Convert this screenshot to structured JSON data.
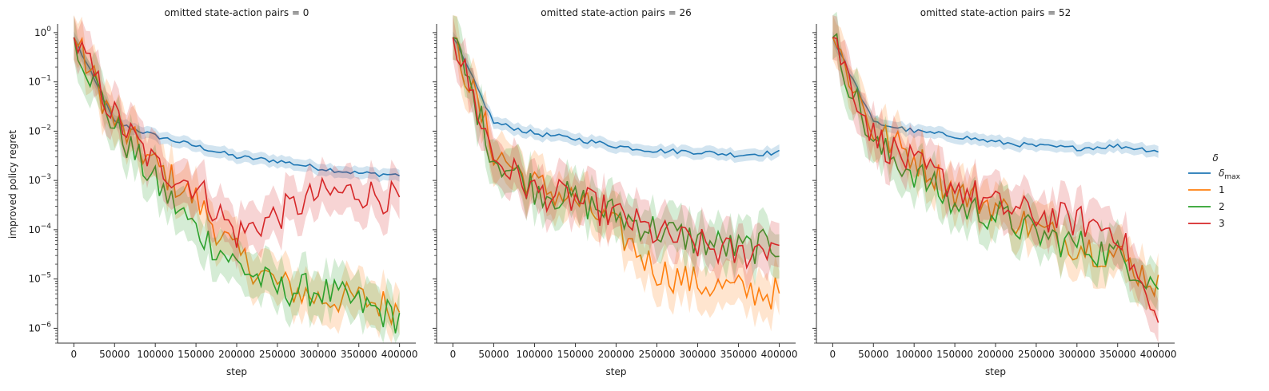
{
  "figure": {
    "ylabel": "improved policy regret",
    "xlabel": "step",
    "legend": {
      "title": "δ",
      "entries": [
        {
          "label": "δmax",
          "color": "#1f77b4"
        },
        {
          "label": "1",
          "color": "#ff7f0e"
        },
        {
          "label": "2",
          "color": "#2ca02c"
        },
        {
          "label": "3",
          "color": "#d62728"
        }
      ]
    },
    "x_ticks": [
      "0",
      "50000",
      "100000",
      "150000",
      "200000",
      "250000",
      "300000",
      "350000",
      "400000"
    ],
    "y_ticks": [
      "10^-6",
      "10^-5",
      "10^-4",
      "10^-3",
      "10^-2",
      "10^-1",
      "10^0"
    ]
  },
  "chart_data": [
    {
      "type": "line",
      "title": "omitted state-action pairs = 0",
      "xlabel": "step",
      "ylabel": "improved policy regret",
      "yscale": "log",
      "xlim": [
        -20000,
        420000
      ],
      "ylim": [
        5e-07,
        1.5
      ],
      "x": [
        0,
        50000,
        100000,
        150000,
        200000,
        250000,
        300000,
        350000,
        400000
      ],
      "series": [
        {
          "name": "δmax",
          "color": "#1f77b4",
          "values": [
            0.8,
            0.015,
            0.008,
            0.005,
            0.003,
            0.0025,
            0.0018,
            0.0014,
            0.0013
          ]
        },
        {
          "name": "1",
          "color": "#ff7f0e",
          "values": [
            0.8,
            0.015,
            0.002,
            0.0004,
            3e-05,
            8e-06,
            4e-06,
            4e-06,
            2.5e-06
          ]
        },
        {
          "name": "2",
          "color": "#2ca02c",
          "values": [
            0.8,
            0.012,
            0.0009,
            0.0001,
            2e-05,
            6e-06,
            6e-06,
            3e-06,
            1.6e-06
          ]
        },
        {
          "name": "3",
          "color": "#d62728",
          "values": [
            0.8,
            0.02,
            0.002,
            0.0008,
            8e-05,
            0.0002,
            0.0005,
            0.0006,
            0.0004
          ]
        }
      ]
    },
    {
      "type": "line",
      "title": "omitted state-action pairs = 26",
      "xlabel": "step",
      "yscale": "log",
      "xlim": [
        -20000,
        420000
      ],
      "ylim": [
        5e-07,
        1.5
      ],
      "x": [
        0,
        50000,
        100000,
        150000,
        200000,
        250000,
        300000,
        350000,
        400000
      ],
      "series": [
        {
          "name": "δmax",
          "color": "#1f77b4",
          "values": [
            0.8,
            0.015,
            0.009,
            0.007,
            0.005,
            0.004,
            0.0038,
            0.0033,
            0.0037
          ]
        },
        {
          "name": "1",
          "color": "#ff7f0e",
          "values": [
            0.8,
            0.004,
            0.0008,
            0.0004,
            0.0001,
            1.5e-05,
            8e-06,
            6e-06,
            5e-06
          ]
        },
        {
          "name": "2",
          "color": "#2ca02c",
          "values": [
            0.8,
            0.003,
            0.0007,
            0.0004,
            0.0002,
            0.0001,
            6e-05,
            4e-05,
            5e-05
          ]
        },
        {
          "name": "3",
          "color": "#d62728",
          "values": [
            0.8,
            0.003,
            0.0006,
            0.0004,
            0.0002,
            8e-05,
            5e-05,
            3e-05,
            6e-05
          ]
        }
      ]
    },
    {
      "type": "line",
      "title": "omitted state-action pairs = 52",
      "xlabel": "step",
      "yscale": "log",
      "xlim": [
        -20000,
        420000
      ],
      "ylim": [
        5e-07,
        1.5
      ],
      "x": [
        0,
        50000,
        100000,
        150000,
        200000,
        250000,
        300000,
        350000,
        400000
      ],
      "series": [
        {
          "name": "δmax",
          "color": "#1f77b4",
          "values": [
            0.8,
            0.015,
            0.01,
            0.008,
            0.006,
            0.005,
            0.0045,
            0.005,
            0.004
          ]
        },
        {
          "name": "1",
          "color": "#ff7f0e",
          "values": [
            0.8,
            0.01,
            0.003,
            0.0006,
            0.0003,
            0.0001,
            5e-05,
            3e-05,
            7.5e-06
          ]
        },
        {
          "name": "2",
          "color": "#2ca02c",
          "values": [
            0.8,
            0.005,
            0.0015,
            0.0003,
            0.0002,
            8e-05,
            5e-05,
            3e-05,
            8e-06
          ]
        },
        {
          "name": "3",
          "color": "#d62728",
          "values": [
            0.8,
            0.008,
            0.002,
            0.0008,
            0.0003,
            0.0002,
            0.00015,
            0.0001,
            1e-06
          ]
        }
      ]
    }
  ]
}
